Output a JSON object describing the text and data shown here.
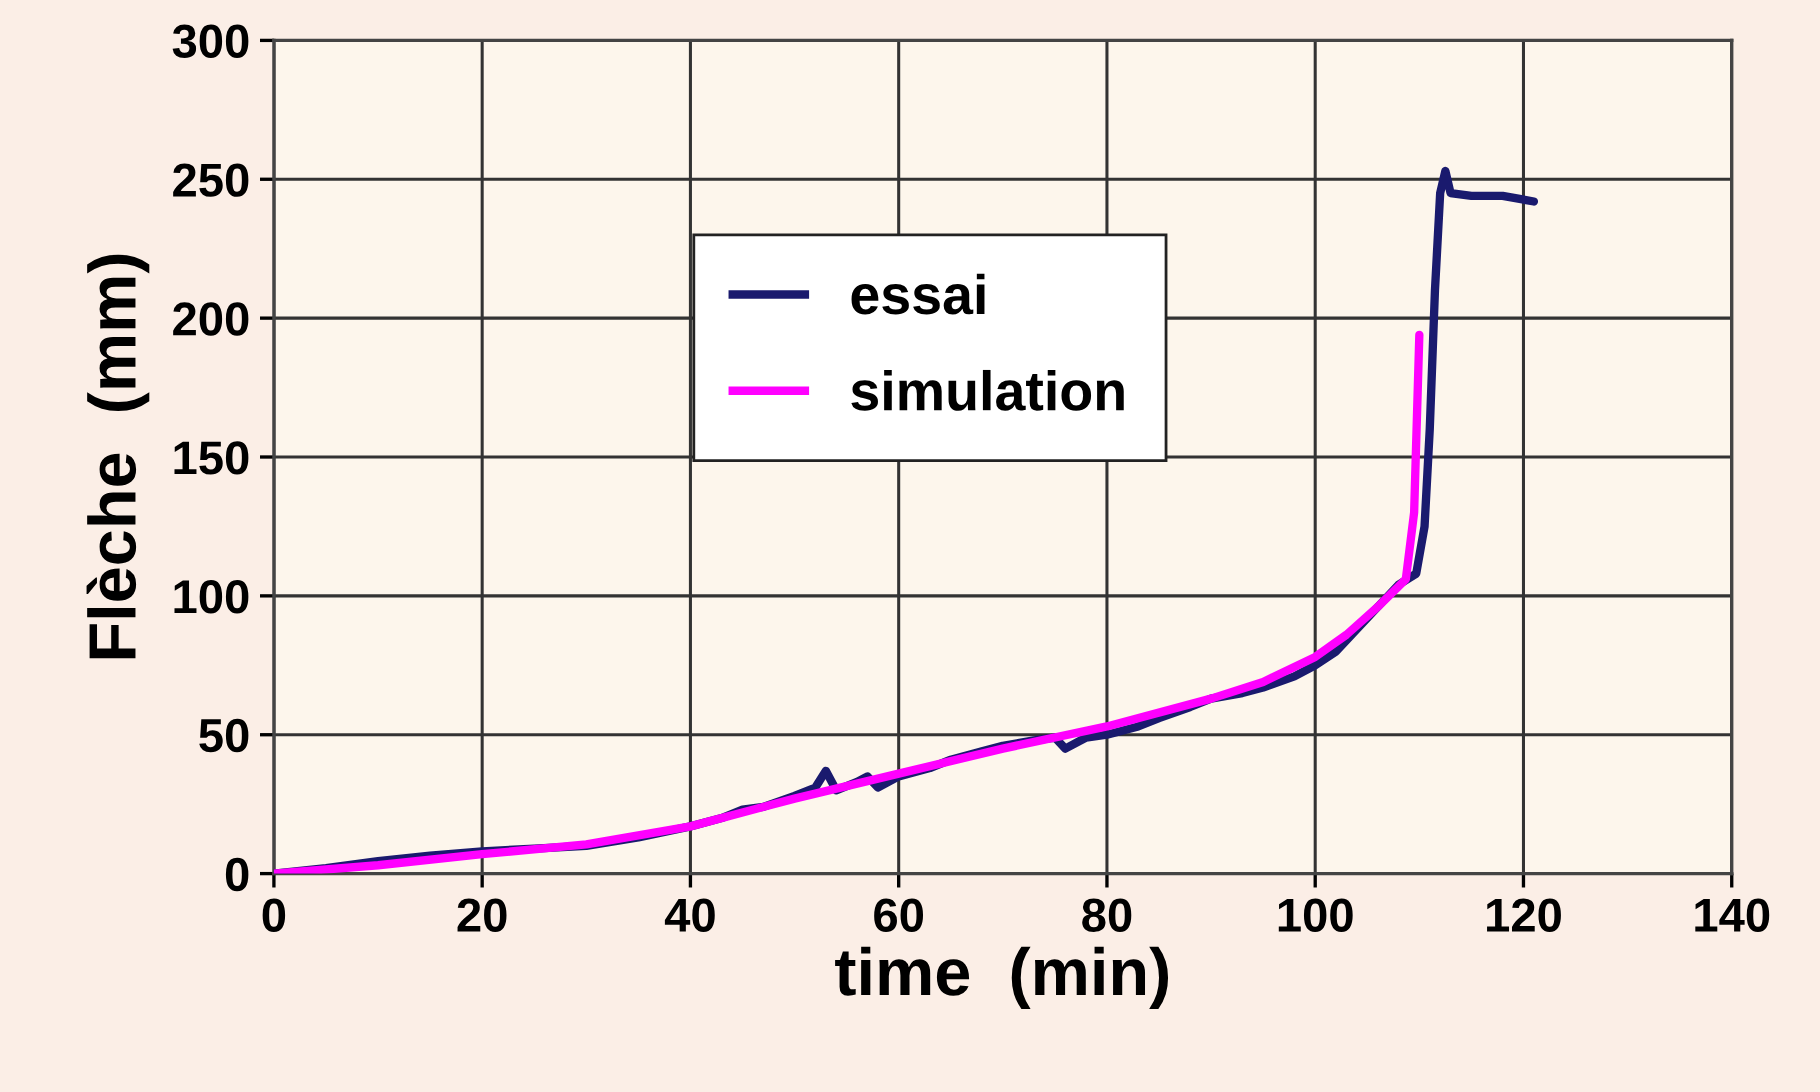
{
  "chart_data": {
    "type": "line",
    "xlabel": "time  (min)",
    "ylabel": "Flèche  (mm)",
    "xlim": [
      0,
      140
    ],
    "ylim": [
      0,
      300
    ],
    "xticks": [
      0,
      20,
      40,
      60,
      80,
      100,
      120,
      140
    ],
    "yticks": [
      0,
      50,
      100,
      150,
      200,
      250,
      300
    ],
    "grid": true,
    "legend": "top",
    "marker": "none",
    "line_style": "solid",
    "series": [
      {
        "name": "essai",
        "color": "#1a1a6e",
        "x": [
          0,
          5,
          10,
          15,
          20,
          25,
          30,
          35,
          40,
          43,
          45,
          47,
          50,
          52,
          53,
          54,
          56,
          57,
          58,
          60,
          63,
          65,
          68,
          70,
          73,
          75,
          76,
          78,
          80,
          83,
          85,
          88,
          90,
          93,
          95,
          98,
          100,
          102,
          104,
          106,
          108,
          109.7,
          110.5,
          111,
          111.5,
          112,
          112.5,
          113,
          115,
          118,
          121
        ],
        "values": [
          0,
          2,
          4.5,
          6.5,
          8,
          9,
          10,
          13,
          17,
          20,
          23,
          24,
          28,
          31,
          37,
          30,
          33,
          35,
          31,
          35,
          38,
          41,
          44,
          46,
          48,
          49,
          45,
          49,
          50,
          53,
          56,
          60,
          63,
          65,
          67,
          71,
          75,
          80,
          88,
          96,
          104,
          108,
          125,
          160,
          210,
          245,
          253,
          245,
          244,
          244,
          242
        ]
      },
      {
        "name": "simulation",
        "color": "#ff00ff",
        "x": [
          0,
          10,
          20,
          30,
          40,
          50,
          60,
          70,
          80,
          90,
          95,
          100,
          103,
          106,
          108.7,
          109.5,
          110
        ],
        "values": [
          0,
          3,
          7,
          10.5,
          17,
          27,
          36,
          45,
          53,
          63,
          69,
          78,
          86,
          96,
          106,
          130,
          194
        ]
      }
    ]
  }
}
